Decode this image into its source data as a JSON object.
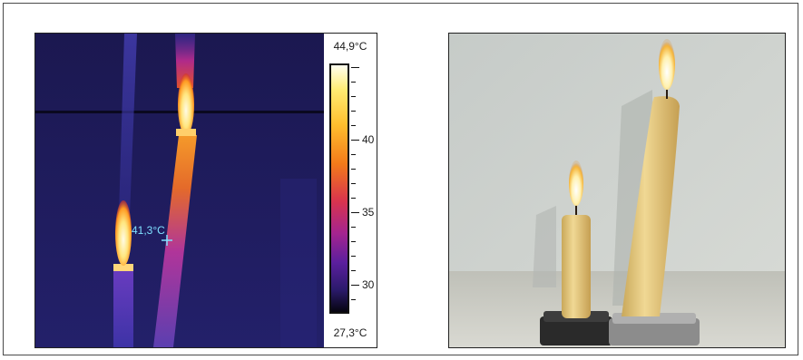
{
  "thermal": {
    "scale_max": "44,9°C",
    "scale_min": "27,3°C",
    "scale_ticks": [
      "40",
      "35",
      "30"
    ],
    "spot_reading": "41,3°C"
  },
  "colors": {
    "thermal_background": "#1c1a5a",
    "flame_core": "#fff4c2",
    "wax": "#e8cf86",
    "wall": "#cfd3cf"
  }
}
